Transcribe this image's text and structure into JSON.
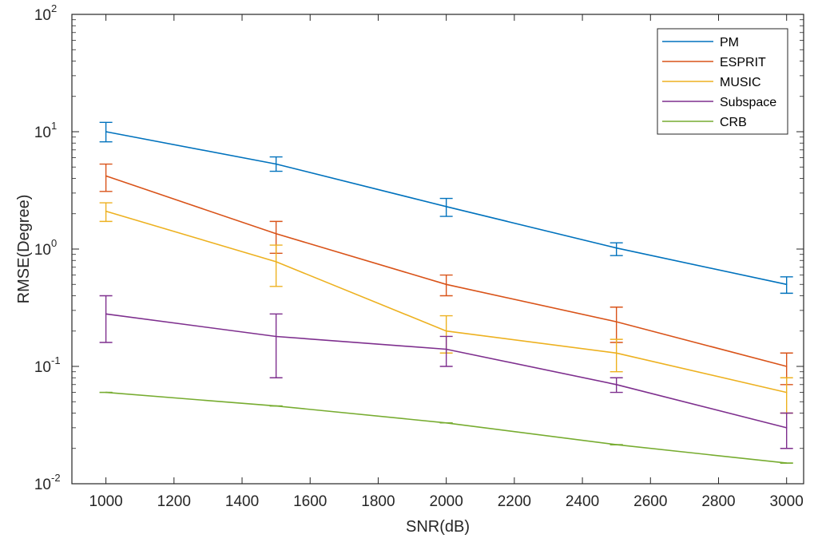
{
  "chart_data": {
    "type": "line",
    "xlabel": "SNR(dB)",
    "ylabel": "RMSE(Degree)",
    "y_scale": "log",
    "xlim": [
      900,
      3050
    ],
    "ylim": [
      0.01,
      100
    ],
    "x_ticks": [
      1000,
      1200,
      1400,
      1600,
      1800,
      2000,
      2200,
      2400,
      2600,
      2800,
      3000
    ],
    "y_ticks": [
      {
        "value": 0.01,
        "base": "10",
        "exp": "-2"
      },
      {
        "value": 0.1,
        "base": "10",
        "exp": "-1"
      },
      {
        "value": 1,
        "base": "10",
        "exp": "0"
      },
      {
        "value": 10,
        "base": "10",
        "exp": "1"
      },
      {
        "value": 100,
        "base": "10",
        "exp": "2"
      }
    ],
    "grid": false,
    "legend_position": "top-right",
    "x": [
      1000,
      1500,
      2000,
      2500,
      3000
    ],
    "series": [
      {
        "name": "PM",
        "color": "#0072BD",
        "values": [
          10,
          5.3,
          2.3,
          1.02,
          0.5
        ],
        "err_low": [
          8.2,
          4.6,
          1.9,
          0.88,
          0.42
        ],
        "err_high": [
          12,
          6.1,
          2.7,
          1.13,
          0.58
        ]
      },
      {
        "name": "ESPRIT",
        "color": "#D95319",
        "values": [
          4.2,
          1.35,
          0.5,
          0.24,
          0.1
        ],
        "err_low": [
          3.1,
          0.92,
          0.4,
          0.16,
          0.07
        ],
        "err_high": [
          5.3,
          1.72,
          0.6,
          0.32,
          0.13
        ]
      },
      {
        "name": "MUSIC",
        "color": "#EDB120",
        "values": [
          2.1,
          0.78,
          0.2,
          0.13,
          0.06
        ],
        "err_low": [
          1.72,
          0.48,
          0.13,
          0.09,
          0.04
        ],
        "err_high": [
          2.48,
          1.08,
          0.27,
          0.17,
          0.08
        ]
      },
      {
        "name": "Subspace",
        "color": "#7E2F8E",
        "values": [
          0.28,
          0.18,
          0.14,
          0.07,
          0.03
        ],
        "err_low": [
          0.16,
          0.08,
          0.1,
          0.06,
          0.02
        ],
        "err_high": [
          0.4,
          0.28,
          0.18,
          0.08,
          0.04
        ]
      },
      {
        "name": "CRB",
        "color": "#77AC30",
        "values": [
          0.06,
          0.046,
          0.033,
          0.0215,
          0.015
        ],
        "err_low": [
          0.06,
          0.046,
          0.033,
          0.0215,
          0.015
        ],
        "err_high": [
          0.06,
          0.046,
          0.033,
          0.0215,
          0.015
        ]
      }
    ]
  }
}
